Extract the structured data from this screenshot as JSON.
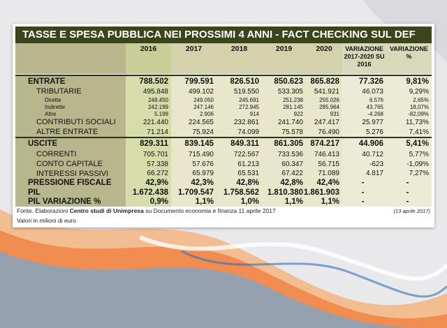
{
  "title": "TASSE E SPESA PUBBLICA NEI PROSSIMI 4 ANNI - FACT CHECKING SUL DEF",
  "table": {
    "header": [
      "2016",
      "2017",
      "2018",
      "2019",
      "2020",
      "VARIAZIONE 2017-2020 SU 2016",
      "VARIAZIONE %"
    ],
    "rows": [
      {
        "label": "ENTRATE",
        "cells": [
          "788.502",
          "799.591",
          "826.510",
          "850.623",
          "865.828",
          "77.326",
          "9,81%"
        ]
      },
      {
        "label": "TRIBUTARIE",
        "cells": [
          "495.848",
          "499.102",
          "519.550",
          "533.305",
          "541.921",
          "46.073",
          "9,29%"
        ]
      },
      {
        "label": "Dirette",
        "cells": [
          "248.450",
          "249.050",
          "245.691",
          "251.238",
          "255.026",
          "6.576",
          "2,65%"
        ]
      },
      {
        "label": "Indirette",
        "cells": [
          "242.199",
          "247.146",
          "272.945",
          "281.145",
          "285.964",
          "43.765",
          "18,07%"
        ]
      },
      {
        "label": "Altre",
        "cells": [
          "5.199",
          "2.906",
          "914",
          "922",
          "931",
          "-4.268",
          "-82,09%"
        ]
      },
      {
        "label": "CONTRIBUTI SOCIALI",
        "cells": [
          "221.440",
          "224.565",
          "232.861",
          "241.740",
          "247.417",
          "25.977",
          "11,73%"
        ]
      },
      {
        "label": "ALTRE ENTRATE",
        "cells": [
          "71.214",
          "75.924",
          "74.099",
          "75.578",
          "76.490",
          "5.276",
          "7,41%"
        ]
      },
      {
        "label": "USCITE",
        "cells": [
          "829.311",
          "839.145",
          "849.311",
          "861.305",
          "874.217",
          "44.906",
          "5,41%"
        ]
      },
      {
        "label": "CORRENTI",
        "cells": [
          "705.701",
          "715.490",
          "722.567",
          "733.536",
          "746.413",
          "40.712",
          "5,77%"
        ]
      },
      {
        "label": "CONTO CAPITALE",
        "cells": [
          "57.338",
          "57.676",
          "61.213",
          "60.347",
          "56.715",
          "-623",
          "-1,09%"
        ]
      },
      {
        "label": "INTERESSI PASSIVI",
        "cells": [
          "66.272",
          "65.979",
          "65.531",
          "67.422",
          "71.089",
          "4.817",
          "7,27%"
        ]
      },
      {
        "label": "PRESSIONE FISCALE",
        "cells": [
          "42,9%",
          "42,3%",
          "42,8%",
          "42,8%",
          "42,4%",
          "-",
          "-"
        ]
      },
      {
        "label": "PIL",
        "cells": [
          "1.672.438",
          "1.709.547",
          "1.758.562",
          "1.810.380",
          "1.861.903",
          "-",
          "-"
        ]
      },
      {
        "label": "PIL VARIAZIONE %",
        "cells": [
          "0,9%",
          "1,1%",
          "1,0%",
          "1,1%",
          "1,1%",
          "-",
          "-"
        ]
      }
    ]
  },
  "footer": {
    "source": [
      "Fonte. Elaborazioni ",
      "Centro studi di Unimpresa",
      " su Documento economia e finanza 11 aprile 2017"
    ],
    "date": "(13 aprile 2017)",
    "note": "Valori in milioni di euro"
  }
}
